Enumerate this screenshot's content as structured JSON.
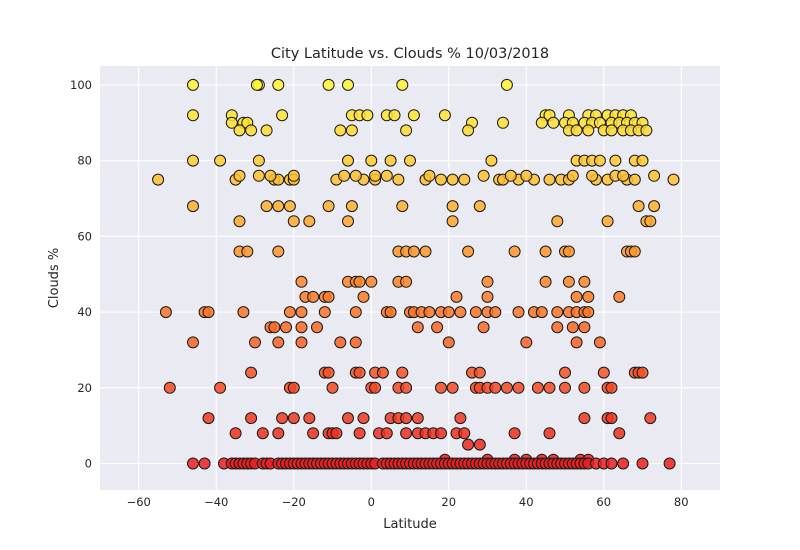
{
  "chart_data": {
    "type": "scatter",
    "title": "City Latitude vs. Clouds % 10/03/2018",
    "xlabel": "Latitude",
    "ylabel": "Clouds %",
    "xlim": [
      -70,
      90
    ],
    "ylim": [
      -7,
      105
    ],
    "xticks": [
      -60,
      -40,
      -20,
      0,
      20,
      40,
      60,
      80
    ],
    "yticks": [
      0,
      20,
      40,
      60,
      80,
      100
    ],
    "grid": true,
    "colormap": "hot (red at 0% → yellow at 100%)",
    "points": [
      [
        -46,
        100
      ],
      [
        -29,
        100
      ],
      [
        -29.5,
        100
      ],
      [
        -24,
        100
      ],
      [
        -11,
        100
      ],
      [
        -6,
        100
      ],
      [
        8,
        100
      ],
      [
        35,
        100
      ],
      [
        -46,
        92
      ],
      [
        -36,
        92
      ],
      [
        -23,
        92
      ],
      [
        -5,
        92
      ],
      [
        -3,
        92
      ],
      [
        -1,
        92
      ],
      [
        4,
        92
      ],
      [
        6,
        92
      ],
      [
        11,
        92
      ],
      [
        19,
        92
      ],
      [
        45,
        92
      ],
      [
        46,
        92
      ],
      [
        51,
        92
      ],
      [
        56,
        92
      ],
      [
        58,
        92
      ],
      [
        61,
        92
      ],
      [
        63,
        92
      ],
      [
        65,
        92
      ],
      [
        67,
        92
      ],
      [
        -36,
        90
      ],
      [
        -33,
        90
      ],
      [
        -32,
        90
      ],
      [
        26,
        90
      ],
      [
        34,
        90
      ],
      [
        44,
        90
      ],
      [
        47,
        90
      ],
      [
        50,
        90
      ],
      [
        52,
        90
      ],
      [
        55,
        90
      ],
      [
        57,
        90
      ],
      [
        59,
        90
      ],
      [
        62,
        90
      ],
      [
        64,
        90
      ],
      [
        66,
        90
      ],
      [
        68,
        90
      ],
      [
        70,
        90
      ],
      [
        -34,
        88
      ],
      [
        -31,
        88
      ],
      [
        -27,
        88
      ],
      [
        -8,
        88
      ],
      [
        -5,
        88
      ],
      [
        9,
        88
      ],
      [
        25,
        88
      ],
      [
        51,
        88
      ],
      [
        53,
        88
      ],
      [
        56,
        88
      ],
      [
        60,
        88
      ],
      [
        62,
        88
      ],
      [
        65,
        88
      ],
      [
        67,
        88
      ],
      [
        69,
        88
      ],
      [
        71,
        88
      ],
      [
        -46,
        80
      ],
      [
        -39,
        80
      ],
      [
        -29,
        80
      ],
      [
        -6,
        80
      ],
      [
        0,
        80
      ],
      [
        5,
        80
      ],
      [
        10,
        80
      ],
      [
        31,
        80
      ],
      [
        53,
        80
      ],
      [
        55,
        80
      ],
      [
        57,
        80
      ],
      [
        59,
        80
      ],
      [
        63,
        80
      ],
      [
        68,
        80
      ],
      [
        70,
        80
      ],
      [
        -55,
        75
      ],
      [
        -35,
        75
      ],
      [
        -25,
        75
      ],
      [
        -24,
        75
      ],
      [
        -21,
        75
      ],
      [
        -20,
        75
      ],
      [
        -9,
        75
      ],
      [
        -2,
        75
      ],
      [
        1,
        75
      ],
      [
        7,
        75
      ],
      [
        14,
        75
      ],
      [
        18,
        75
      ],
      [
        21,
        75
      ],
      [
        24,
        75
      ],
      [
        33,
        75
      ],
      [
        34,
        75
      ],
      [
        38,
        75
      ],
      [
        42,
        75
      ],
      [
        46,
        75
      ],
      [
        49,
        75
      ],
      [
        51,
        75
      ],
      [
        58,
        75
      ],
      [
        61,
        75
      ],
      [
        66,
        75
      ],
      [
        68,
        75
      ],
      [
        78,
        75
      ],
      [
        -34,
        76
      ],
      [
        -29,
        76
      ],
      [
        -26,
        76
      ],
      [
        -20,
        76
      ],
      [
        -7,
        76
      ],
      [
        -4,
        76
      ],
      [
        1,
        76
      ],
      [
        4,
        76
      ],
      [
        15,
        76
      ],
      [
        29,
        76
      ],
      [
        36,
        76
      ],
      [
        40,
        76
      ],
      [
        52,
        76
      ],
      [
        57,
        76
      ],
      [
        63,
        76
      ],
      [
        65,
        76
      ],
      [
        73,
        76
      ],
      [
        -46,
        68
      ],
      [
        -27,
        68
      ],
      [
        -24,
        68
      ],
      [
        -21,
        68
      ],
      [
        -11,
        68
      ],
      [
        -5,
        68
      ],
      [
        8,
        68
      ],
      [
        21,
        68
      ],
      [
        28,
        68
      ],
      [
        69,
        68
      ],
      [
        73,
        68
      ],
      [
        -34,
        64
      ],
      [
        -20,
        64
      ],
      [
        -16,
        64
      ],
      [
        -6,
        64
      ],
      [
        21,
        64
      ],
      [
        48,
        64
      ],
      [
        61,
        64
      ],
      [
        71,
        64
      ],
      [
        72,
        64
      ],
      [
        -34,
        56
      ],
      [
        -32,
        56
      ],
      [
        -24,
        56
      ],
      [
        7,
        56
      ],
      [
        9,
        56
      ],
      [
        11,
        56
      ],
      [
        14,
        56
      ],
      [
        25,
        56
      ],
      [
        37,
        56
      ],
      [
        45,
        56
      ],
      [
        50,
        56
      ],
      [
        51,
        56
      ],
      [
        66,
        56
      ],
      [
        67,
        56
      ],
      [
        68,
        56
      ],
      [
        -53,
        40
      ],
      [
        -43,
        40
      ],
      [
        -42,
        40
      ],
      [
        -33,
        40
      ],
      [
        -21,
        40
      ],
      [
        -18,
        40
      ],
      [
        -12,
        40
      ],
      [
        -4,
        40
      ],
      [
        4,
        40
      ],
      [
        5,
        40
      ],
      [
        10,
        40
      ],
      [
        11,
        40
      ],
      [
        13,
        40
      ],
      [
        15,
        40
      ],
      [
        18,
        40
      ],
      [
        20,
        40
      ],
      [
        23,
        40
      ],
      [
        27,
        40
      ],
      [
        30,
        40
      ],
      [
        32,
        40
      ],
      [
        38,
        40
      ],
      [
        42,
        40
      ],
      [
        44,
        40
      ],
      [
        48,
        40
      ],
      [
        51,
        40
      ],
      [
        53,
        40
      ],
      [
        55,
        40
      ],
      [
        56,
        40
      ],
      [
        -18,
        48
      ],
      [
        -6,
        48
      ],
      [
        -4,
        48
      ],
      [
        -3,
        48
      ],
      [
        0,
        48
      ],
      [
        7,
        48
      ],
      [
        9,
        48
      ],
      [
        30,
        48
      ],
      [
        45,
        48
      ],
      [
        51,
        48
      ],
      [
        55,
        48
      ],
      [
        -46,
        32
      ],
      [
        -30,
        32
      ],
      [
        -24,
        32
      ],
      [
        -18,
        32
      ],
      [
        -8,
        32
      ],
      [
        -4,
        32
      ],
      [
        20,
        32
      ],
      [
        40,
        32
      ],
      [
        53,
        32
      ],
      [
        59,
        32
      ],
      [
        -26,
        36
      ],
      [
        -25,
        36
      ],
      [
        -22,
        36
      ],
      [
        -18,
        36
      ],
      [
        -14,
        36
      ],
      [
        12,
        36
      ],
      [
        17,
        36
      ],
      [
        29,
        36
      ],
      [
        48,
        36
      ],
      [
        52,
        36
      ],
      [
        55,
        36
      ],
      [
        -17,
        44
      ],
      [
        -15,
        44
      ],
      [
        -12,
        44
      ],
      [
        -11,
        44
      ],
      [
        -2,
        44
      ],
      [
        22,
        44
      ],
      [
        30,
        44
      ],
      [
        53,
        44
      ],
      [
        56,
        44
      ],
      [
        64,
        44
      ],
      [
        -52,
        20
      ],
      [
        -39,
        20
      ],
      [
        -21,
        20
      ],
      [
        -20,
        20
      ],
      [
        -10,
        20
      ],
      [
        0,
        20
      ],
      [
        1,
        20
      ],
      [
        7,
        20
      ],
      [
        9,
        20
      ],
      [
        18,
        20
      ],
      [
        21,
        20
      ],
      [
        27,
        20
      ],
      [
        28,
        20
      ],
      [
        30,
        20
      ],
      [
        32,
        20
      ],
      [
        35,
        20
      ],
      [
        38,
        20
      ],
      [
        43,
        20
      ],
      [
        46,
        20
      ],
      [
        50,
        20
      ],
      [
        55,
        20
      ],
      [
        61,
        20
      ],
      [
        62,
        20
      ],
      [
        -31,
        24
      ],
      [
        -12,
        24
      ],
      [
        -11,
        24
      ],
      [
        -4,
        24
      ],
      [
        -3,
        24
      ],
      [
        1,
        24
      ],
      [
        3,
        24
      ],
      [
        8,
        24
      ],
      [
        26,
        24
      ],
      [
        28,
        24
      ],
      [
        50,
        24
      ],
      [
        60,
        24
      ],
      [
        68,
        24
      ],
      [
        69,
        24
      ],
      [
        70,
        24
      ],
      [
        -42,
        12
      ],
      [
        -31,
        12
      ],
      [
        -23,
        12
      ],
      [
        -20,
        12
      ],
      [
        -16,
        12
      ],
      [
        -6,
        12
      ],
      [
        -2,
        12
      ],
      [
        5,
        12
      ],
      [
        7,
        12
      ],
      [
        9,
        12
      ],
      [
        12,
        12
      ],
      [
        23,
        12
      ],
      [
        55,
        12
      ],
      [
        61,
        12
      ],
      [
        62,
        12
      ],
      [
        72,
        12
      ],
      [
        -35,
        8
      ],
      [
        -28,
        8
      ],
      [
        -24,
        8
      ],
      [
        -15,
        8
      ],
      [
        -11,
        8
      ],
      [
        -10,
        8
      ],
      [
        -9,
        8
      ],
      [
        -3,
        8
      ],
      [
        2,
        8
      ],
      [
        4,
        8
      ],
      [
        9,
        8
      ],
      [
        12,
        8
      ],
      [
        14,
        8
      ],
      [
        16,
        8
      ],
      [
        18,
        8
      ],
      [
        22,
        8
      ],
      [
        24,
        8
      ],
      [
        37,
        8
      ],
      [
        46,
        8
      ],
      [
        64,
        8
      ],
      [
        25,
        5
      ],
      [
        28,
        5
      ],
      [
        19,
        1
      ],
      [
        30,
        1
      ],
      [
        37,
        1
      ],
      [
        40,
        1
      ],
      [
        44,
        1
      ],
      [
        47,
        1
      ],
      [
        54,
        1
      ],
      [
        56,
        1
      ],
      [
        -46,
        0
      ],
      [
        -43,
        0
      ],
      [
        -38,
        0
      ],
      [
        -36,
        0
      ],
      [
        -35,
        0
      ],
      [
        -34,
        0
      ],
      [
        -33,
        0
      ],
      [
        -32,
        0
      ],
      [
        -31,
        0
      ],
      [
        -30,
        0
      ],
      [
        -28,
        0
      ],
      [
        -27,
        0
      ],
      [
        -26,
        0
      ],
      [
        -24,
        0
      ],
      [
        -23,
        0
      ],
      [
        -22,
        0
      ],
      [
        -21,
        0
      ],
      [
        -20,
        0
      ],
      [
        -19,
        0
      ],
      [
        -18,
        0
      ],
      [
        -17,
        0
      ],
      [
        -16,
        0
      ],
      [
        -15,
        0
      ],
      [
        -14,
        0
      ],
      [
        -13,
        0
      ],
      [
        -12,
        0
      ],
      [
        -11,
        0
      ],
      [
        -10,
        0
      ],
      [
        -9,
        0
      ],
      [
        -8,
        0
      ],
      [
        -7,
        0
      ],
      [
        -6,
        0
      ],
      [
        -5,
        0
      ],
      [
        -4,
        0
      ],
      [
        -3,
        0
      ],
      [
        -2,
        0
      ],
      [
        -1,
        0
      ],
      [
        0,
        0
      ],
      [
        1,
        0
      ],
      [
        3,
        0
      ],
      [
        4,
        0
      ],
      [
        5,
        0
      ],
      [
        6,
        0
      ],
      [
        7,
        0
      ],
      [
        8,
        0
      ],
      [
        9,
        0
      ],
      [
        10,
        0
      ],
      [
        11,
        0
      ],
      [
        12,
        0
      ],
      [
        13,
        0
      ],
      [
        14,
        0
      ],
      [
        15,
        0
      ],
      [
        16,
        0
      ],
      [
        17,
        0
      ],
      [
        18,
        0
      ],
      [
        19,
        0
      ],
      [
        20,
        0
      ],
      [
        21,
        0
      ],
      [
        22,
        0
      ],
      [
        23,
        0
      ],
      [
        24,
        0
      ],
      [
        25,
        0
      ],
      [
        26,
        0
      ],
      [
        27,
        0
      ],
      [
        28,
        0
      ],
      [
        29,
        0
      ],
      [
        30,
        0
      ],
      [
        31,
        0
      ],
      [
        32,
        0
      ],
      [
        33,
        0
      ],
      [
        34,
        0
      ],
      [
        35,
        0
      ],
      [
        36,
        0
      ],
      [
        37,
        0
      ],
      [
        38,
        0
      ],
      [
        39,
        0
      ],
      [
        40,
        0
      ],
      [
        41,
        0
      ],
      [
        42,
        0
      ],
      [
        43,
        0
      ],
      [
        44,
        0
      ],
      [
        45,
        0
      ],
      [
        46,
        0
      ],
      [
        47,
        0
      ],
      [
        48,
        0
      ],
      [
        49,
        0
      ],
      [
        50,
        0
      ],
      [
        51,
        0
      ],
      [
        52,
        0
      ],
      [
        53,
        0
      ],
      [
        54,
        0
      ],
      [
        55,
        0
      ],
      [
        56,
        0
      ],
      [
        58,
        0
      ],
      [
        60,
        0
      ],
      [
        62,
        0
      ],
      [
        65,
        0
      ],
      [
        70,
        0
      ],
      [
        77,
        0
      ]
    ]
  }
}
